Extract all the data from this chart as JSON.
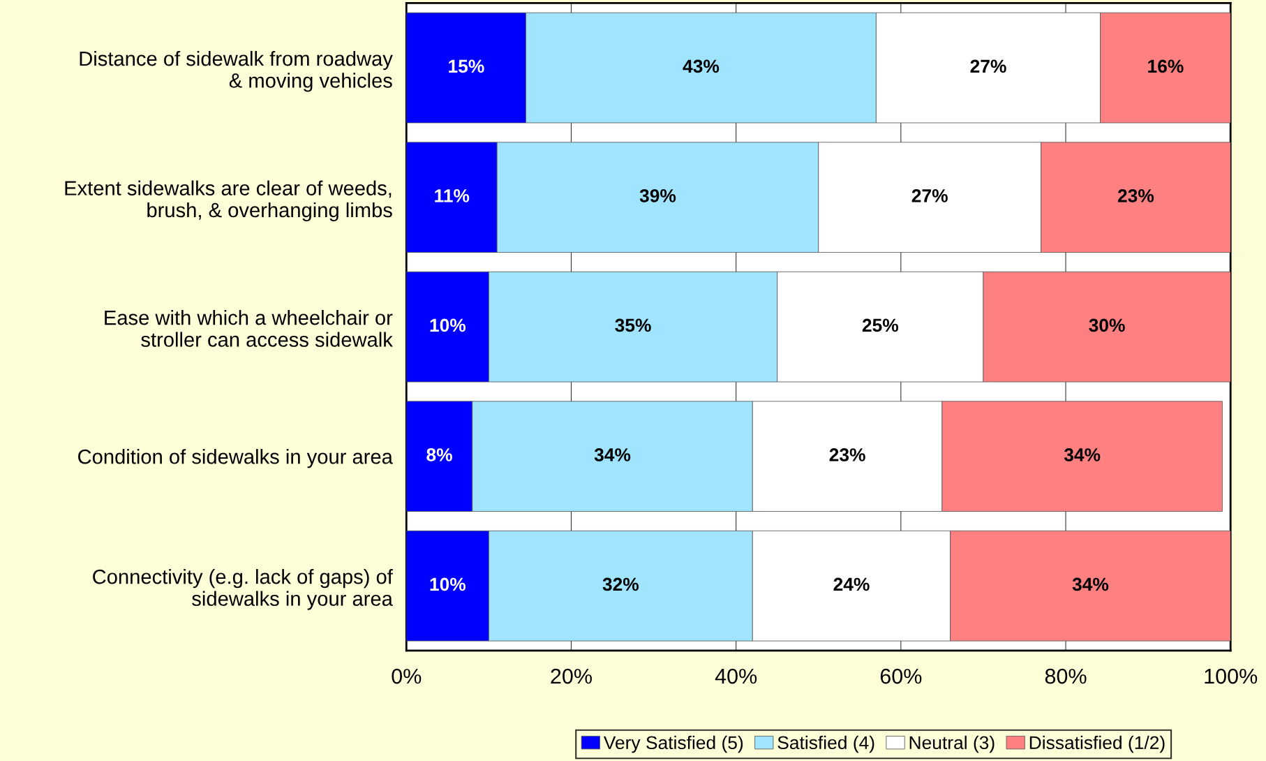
{
  "chart_data": {
    "type": "bar",
    "orientation": "horizontal",
    "stacked": true,
    "categories": [
      "Distance of sidewalk from roadway\n& moving vehicles",
      "Extent sidewalks are clear of weeds,\nbrush, & overhanging limbs",
      "Ease with which a wheelchair or\nstroller can access sidewalk",
      "Condition of sidewalks in your area",
      "Connectivity (e.g. lack of gaps) of\nsidewalks in your area"
    ],
    "series": [
      {
        "name": "Very Satisfied (5)",
        "color": "#0000ff",
        "values": [
          14.5,
          11,
          10,
          8,
          10
        ],
        "value_labels": [
          "15%",
          "11%",
          "10%",
          "8%",
          "10%"
        ]
      },
      {
        "name": "Satisfied (4)",
        "color": "#a0e4ff",
        "values": [
          42.5,
          39,
          35,
          34,
          32
        ],
        "value_labels": [
          "43%",
          "39%",
          "35%",
          "34%",
          "32%"
        ]
      },
      {
        "name": "Neutral (3)",
        "color": "#ffffff",
        "values": [
          27.2,
          27,
          25,
          23,
          24
        ],
        "value_labels": [
          "27%",
          "27%",
          "25%",
          "23%",
          "24%"
        ]
      },
      {
        "name": "Dissatisfied (1/2)",
        "color": "#ff8080",
        "values": [
          15.8,
          23,
          30,
          34,
          34
        ],
        "value_labels": [
          "16%",
          "23%",
          "30%",
          "34%",
          "34%"
        ]
      }
    ],
    "xlim": [
      0,
      100
    ],
    "xticks": [
      {
        "value": 0,
        "label": "0%"
      },
      {
        "value": 20,
        "label": "20%"
      },
      {
        "value": 40,
        "label": "40%"
      },
      {
        "value": 60,
        "label": "60%"
      },
      {
        "value": 80,
        "label": "80%"
      },
      {
        "value": 100,
        "label": "100%"
      }
    ],
    "grid": "x",
    "legend": "bottom"
  }
}
